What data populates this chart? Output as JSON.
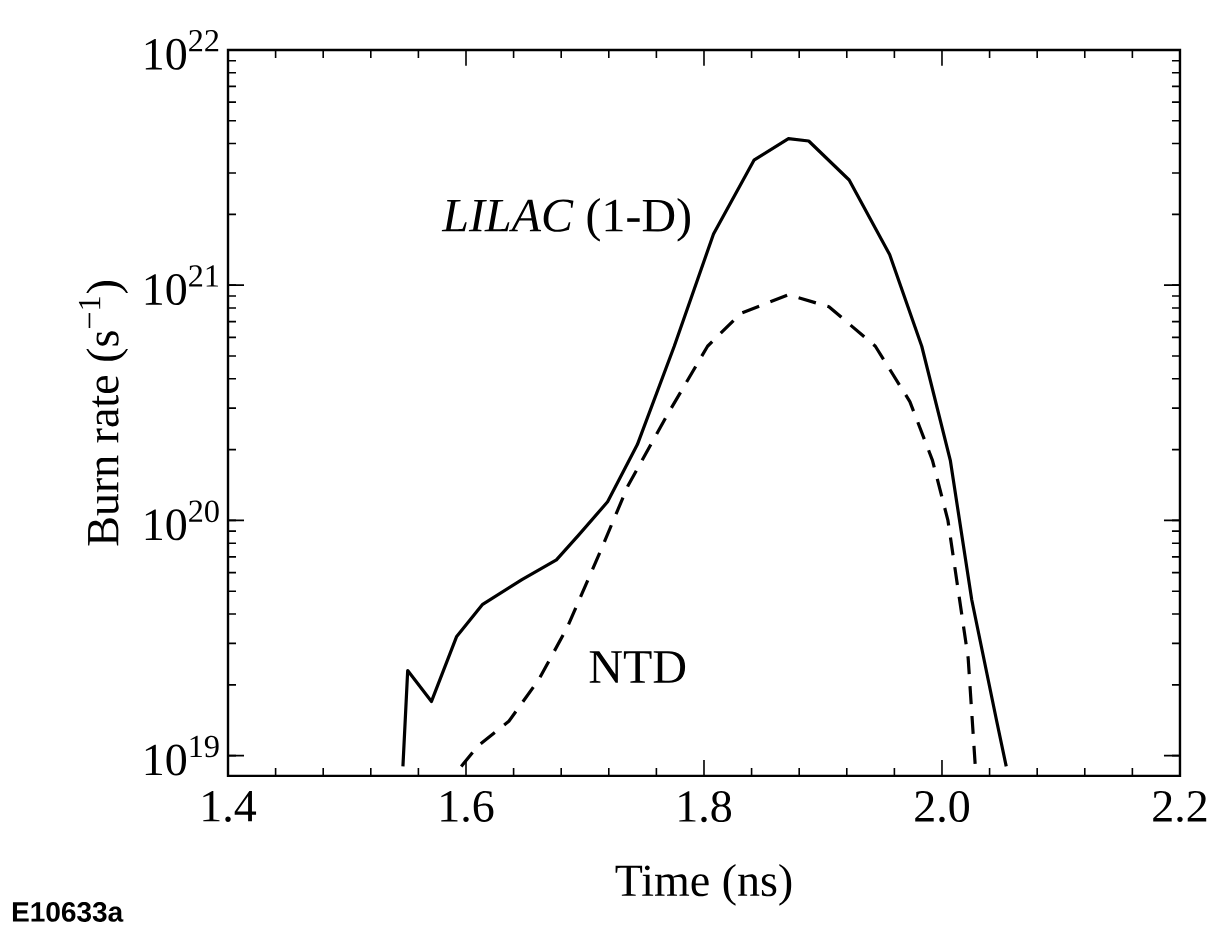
{
  "chart_data": {
    "type": "line",
    "xlabel": "Time (ns)",
    "ylabel": "Burn rate (s$^{−1}$)",
    "xlim": [
      1.4,
      2.2
    ],
    "xticks": [
      1.4,
      1.6,
      1.8,
      {
        "value": 2.0,
        "label": "2.0"
      },
      2.2
    ],
    "ylim": [
      8.2e+18,
      1e+22
    ],
    "yticks": [
      {
        "value": 1e+19,
        "label": "10$^{19}$"
      },
      {
        "value": 1e+20,
        "label": "10$^{20}$"
      },
      {
        "value": 1e+21,
        "label": "10$^{21}$"
      },
      {
        "value": 1e+22,
        "label": "10$^{22}$"
      }
    ],
    "log": "y",
    "grid": false,
    "legend": false,
    "marker": "none",
    "annotations": [
      "E10633a"
    ],
    "series": [
      {
        "name": "*LILAC* (1-D)",
        "color": "#000000",
        "line_style": "solid",
        "x": [
          1.547,
          1.551,
          1.571,
          1.592,
          1.614,
          1.647,
          1.676,
          1.695,
          1.719,
          1.744,
          1.775,
          1.808,
          1.842,
          1.871,
          1.888,
          1.922,
          1.956,
          1.983,
          2.007,
          2.025,
          2.046,
          2.054
        ],
        "values": [
          9e+18,
          2.3e+19,
          1.7e+19,
          3.2e+19,
          4.4e+19,
          5.6e+19,
          6.8e+19,
          8.7e+19,
          1.2e+20,
          2.1e+20,
          5.5e+20,
          1.65e+21,
          3.4e+21,
          4.2e+21,
          4.1e+21,
          2.8e+21,
          1.35e+21,
          5.5e+20,
          1.8e+20,
          4.6e+19,
          1.4e+19,
          9e+18
        ]
      },
      {
        "name": "NTD",
        "color": "#000000",
        "line_style": "dashed",
        "x": [
          1.596,
          1.61,
          1.636,
          1.661,
          1.685,
          1.712,
          1.736,
          1.769,
          1.803,
          1.831,
          1.871,
          1.905,
          1.944,
          1.973,
          1.992,
          2.005,
          2.022,
          2.028
        ],
        "values": [
          9e+18,
          1.1e+19,
          1.4e+19,
          2.1e+19,
          3.5e+19,
          7.2e+19,
          1.4e+20,
          2.8e+20,
          5.5e+20,
          7.6e+20,
          9.1e+20,
          8.1e+20,
          5.5e+20,
          3.2e+20,
          1.8e+20,
          1e+20,
          2.6e+19,
          9e+18
        ]
      }
    ]
  }
}
